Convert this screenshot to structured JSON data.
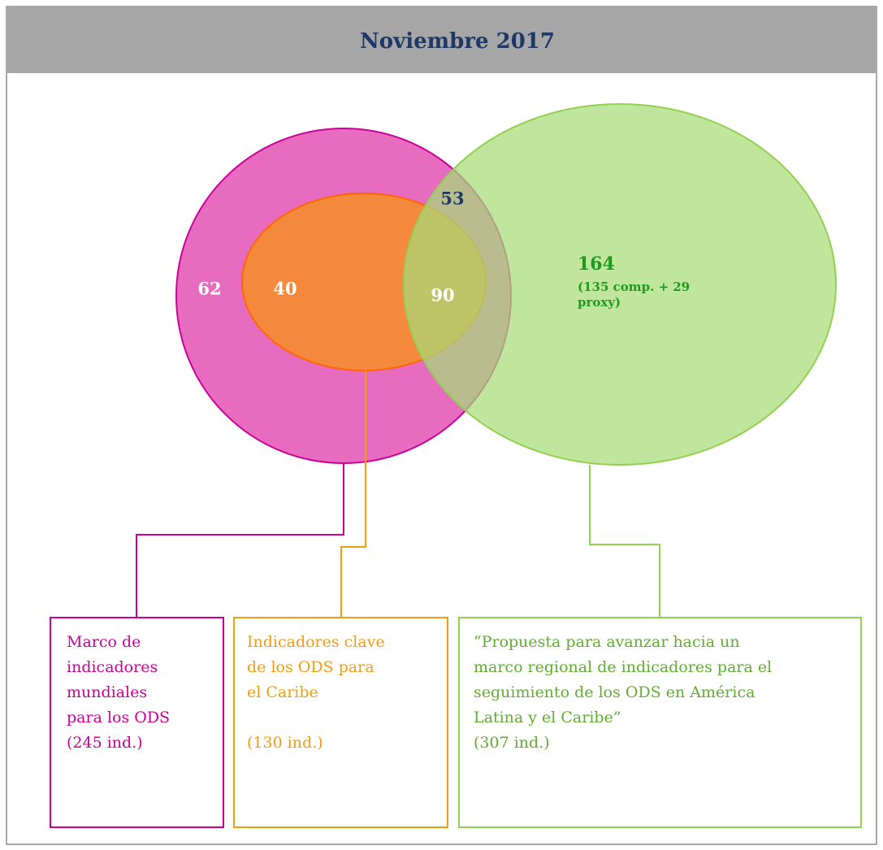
{
  "header": {
    "title": "Noviembre 2017"
  },
  "regions": {
    "global_only": 62,
    "global_caribbean": 40,
    "all_three": 90,
    "global_regional": 53,
    "regional_only": 164,
    "regional_only_note": [
      "(135 comp. + 29",
      "proxy)"
    ]
  },
  "boxes": [
    {
      "lines": [
        "Marco de",
        "indicadores",
        "mundiales",
        "para los ODS"
      ],
      "count": "(245 ind.)"
    },
    {
      "lines": [
        "Indicadores clave",
        "de los ODS para",
        "el Caribe"
      ],
      "count": "(130 ind.)"
    },
    {
      "lines": [
        "“Propuesta para avanzar hacia un",
        "marco regional de indicadores para el",
        "seguimiento de los ODS en América",
        "Latina y el Caribe”"
      ],
      "count": "(307 ind.)"
    }
  ]
}
